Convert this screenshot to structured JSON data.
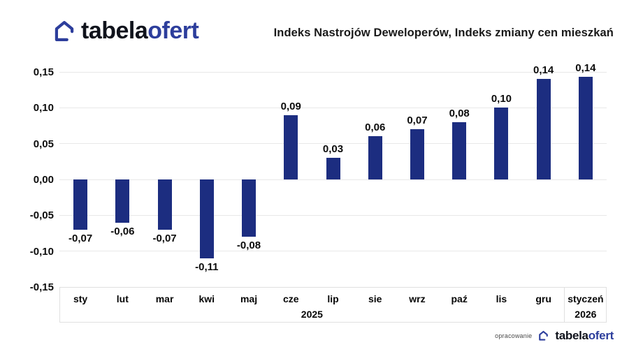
{
  "branding": {
    "logo_part_black": "tabela",
    "logo_part_blue": "ofert",
    "house_icon": "house-outline-icon",
    "logo_blue_color": "#2d3e9c",
    "logo_black_color": "#10131c"
  },
  "header": {
    "title": "Indeks Nastrojów Deweloperów, Indeks zmiany cen mieszkań"
  },
  "footer": {
    "credit": "opracowanie"
  },
  "chart_data": {
    "type": "bar",
    "title": "Indeks Nastrojów Deweloperów, Indeks zmiany cen mieszkań",
    "categories": [
      "sty",
      "lut",
      "mar",
      "kwi",
      "maj",
      "cze",
      "lip",
      "sie",
      "wrz",
      "paź",
      "lis",
      "gru",
      "styczeń"
    ],
    "values": [
      -0.07,
      -0.06,
      -0.07,
      -0.11,
      -0.08,
      0.09,
      0.03,
      0.06,
      0.07,
      0.08,
      0.1,
      0.14,
      0.143
    ],
    "value_labels": [
      "-0,07",
      "-0,06",
      "-0,07",
      "-0,11",
      "-0,08",
      "0,09",
      "0,03",
      "0,06",
      "0,07",
      "0,08",
      "0,10",
      "0,14",
      "0,14"
    ],
    "year_groups": [
      {
        "label": "2025",
        "start_index": 0,
        "end_index": 11
      },
      {
        "label": "2026",
        "start_index": 12,
        "end_index": 12
      }
    ],
    "yticks": [
      0.15,
      0.1,
      0.05,
      0.0,
      -0.05,
      -0.1,
      -0.15
    ],
    "ytick_labels": [
      "0,15",
      "0,10",
      "0,05",
      "0,00",
      "-0,05",
      "-0,10",
      "-0,15"
    ],
    "ylim": [
      -0.15,
      0.15
    ],
    "grid": true,
    "legend": "none",
    "bar_color": "#1c2d80",
    "grid_color": "#e8e8e8",
    "label_color": "#0d0d0d"
  }
}
